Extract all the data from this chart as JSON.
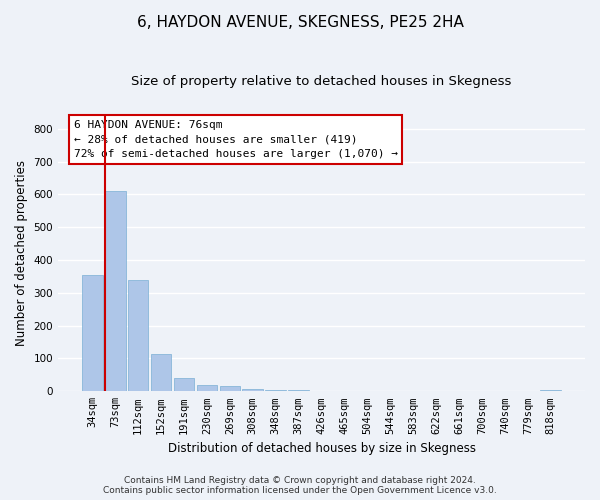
{
  "title": "6, HAYDON AVENUE, SKEGNESS, PE25 2HA",
  "subtitle": "Size of property relative to detached houses in Skegness",
  "xlabel": "Distribution of detached houses by size in Skegness",
  "ylabel": "Number of detached properties",
  "footer_line1": "Contains HM Land Registry data © Crown copyright and database right 2024.",
  "footer_line2": "Contains public sector information licensed under the Open Government Licence v3.0.",
  "bin_labels": [
    "34sqm",
    "73sqm",
    "112sqm",
    "152sqm",
    "191sqm",
    "230sqm",
    "269sqm",
    "308sqm",
    "348sqm",
    "387sqm",
    "426sqm",
    "465sqm",
    "504sqm",
    "544sqm",
    "583sqm",
    "622sqm",
    "661sqm",
    "700sqm",
    "740sqm",
    "779sqm",
    "818sqm"
  ],
  "bar_values": [
    355,
    610,
    338,
    115,
    40,
    20,
    15,
    8,
    3,
    5,
    0,
    0,
    0,
    0,
    0,
    0,
    0,
    0,
    0,
    0,
    5
  ],
  "bar_color": "#aec6e8",
  "bar_edge_color": "#7aafd4",
  "vline_color": "#cc0000",
  "vline_x_index": 1,
  "annotation_box_text": "6 HAYDON AVENUE: 76sqm\n← 28% of detached houses are smaller (419)\n72% of semi-detached houses are larger (1,070) →",
  "ylim": [
    0,
    840
  ],
  "yticks": [
    0,
    100,
    200,
    300,
    400,
    500,
    600,
    700,
    800
  ],
  "bg_color": "#eef2f8",
  "plot_bg_color": "#eef2f8",
  "grid_color": "#ffffff",
  "title_fontsize": 11,
  "subtitle_fontsize": 9.5,
  "axis_label_fontsize": 8.5,
  "tick_fontsize": 7.5,
  "annotation_fontsize": 8,
  "footer_fontsize": 6.5
}
